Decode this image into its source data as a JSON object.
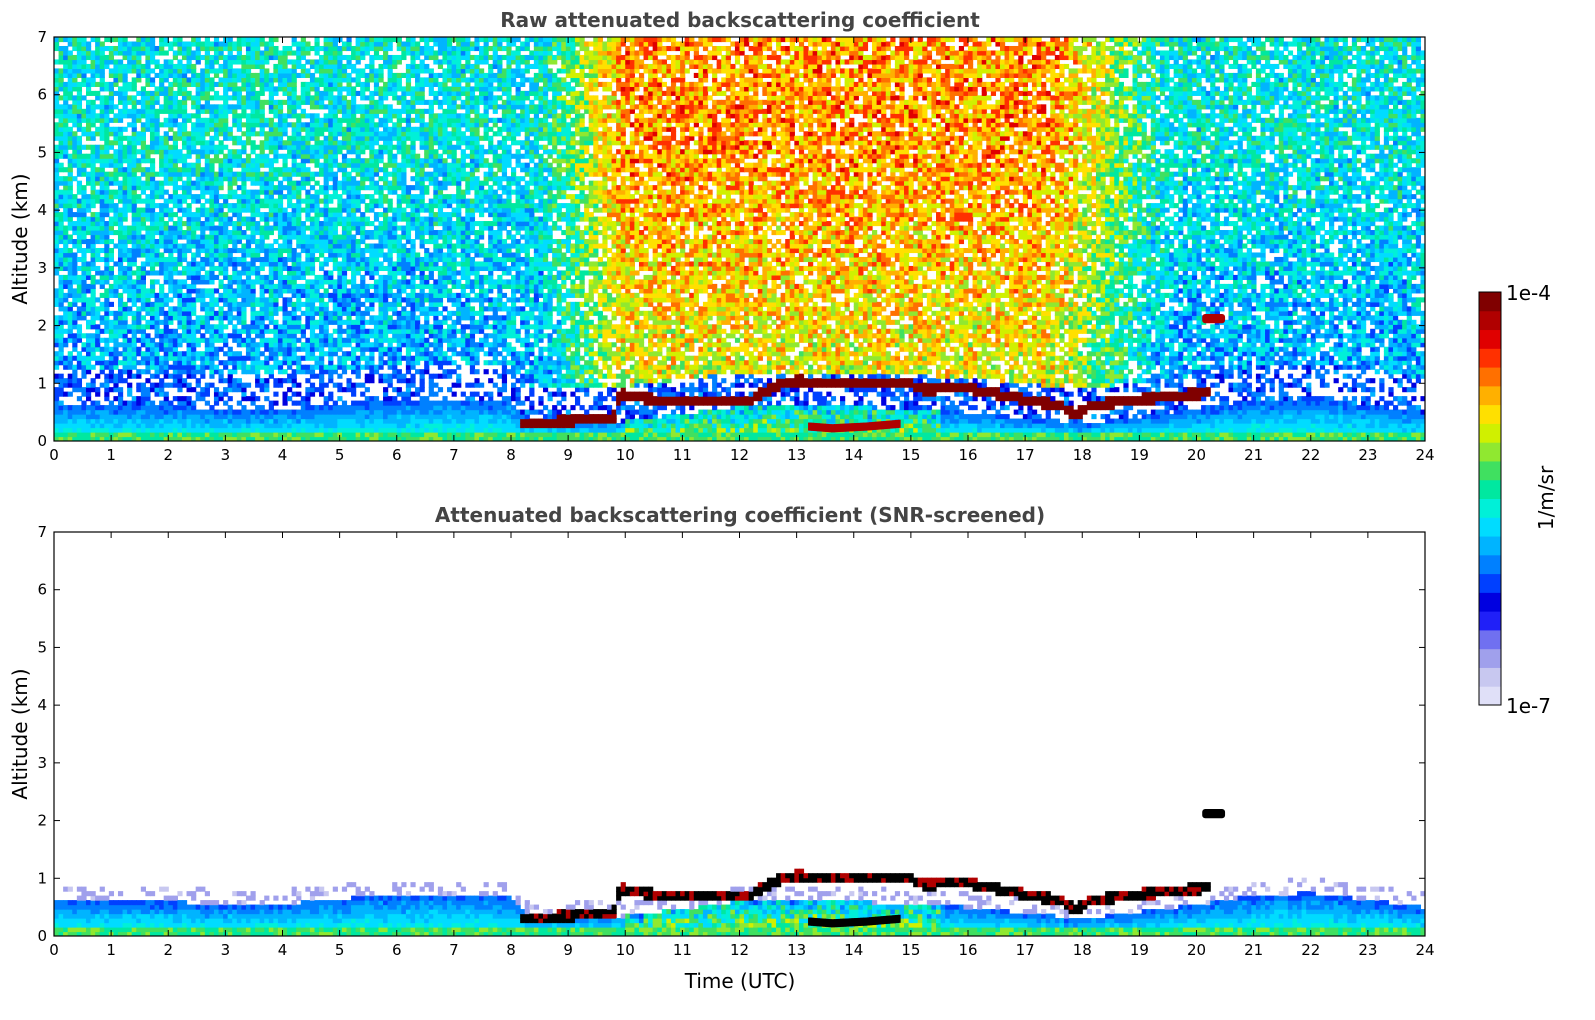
{
  "chart_data": [
    {
      "type": "heatmap",
      "title": "Raw attenuated backscattering coefficient",
      "xlabel": "",
      "ylabel": "Altitude (km)",
      "xlim": [
        0,
        24
      ],
      "ylim": [
        0,
        7
      ],
      "xticks": [
        0,
        1,
        2,
        3,
        4,
        5,
        6,
        7,
        8,
        9,
        10,
        11,
        12,
        13,
        14,
        15,
        16,
        17,
        18,
        19,
        20,
        21,
        22,
        23,
        24
      ],
      "yticks": [
        0,
        1,
        2,
        3,
        4,
        5,
        6,
        7
      ],
      "xtick_labels": [
        "0",
        "1",
        "2",
        "3",
        "4",
        "5",
        "6",
        "7",
        "8",
        "9",
        "10",
        "11",
        "12",
        "13",
        "14",
        "15",
        "16",
        "17",
        "18",
        "19",
        "20",
        "21",
        "22",
        "23",
        "24"
      ],
      "ytick_labels": [
        "0",
        "1",
        "2",
        "3",
        "4",
        "5",
        "6",
        "7"
      ],
      "screened": false
    },
    {
      "type": "heatmap",
      "title": "Attenuated backscattering coefficient (SNR-screened)",
      "xlabel": "Time (UTC)",
      "ylabel": "Altitude (km)",
      "xlim": [
        0,
        24
      ],
      "ylim": [
        0,
        7
      ],
      "xticks": [
        0,
        1,
        2,
        3,
        4,
        5,
        6,
        7,
        8,
        9,
        10,
        11,
        12,
        13,
        14,
        15,
        16,
        17,
        18,
        19,
        20,
        21,
        22,
        23,
        24
      ],
      "yticks": [
        0,
        1,
        2,
        3,
        4,
        5,
        6,
        7
      ],
      "xtick_labels": [
        "0",
        "1",
        "2",
        "3",
        "4",
        "5",
        "6",
        "7",
        "8",
        "9",
        "10",
        "11",
        "12",
        "13",
        "14",
        "15",
        "16",
        "17",
        "18",
        "19",
        "20",
        "21",
        "22",
        "23",
        "24"
      ],
      "ytick_labels": [
        "0",
        "1",
        "2",
        "3",
        "4",
        "5",
        "6",
        "7"
      ],
      "screened": true
    }
  ],
  "colorbar": {
    "label": "1/m/sr",
    "max_label": "1e-4",
    "min_label": "1e-7",
    "scale": "log",
    "range": [
      1e-07,
      0.0001
    ],
    "colormap": [
      "#e0e0f8",
      "#c8c8f0",
      "#a0a0ec",
      "#7070f0",
      "#2020f8",
      "#0000e0",
      "#0040ff",
      "#0080ff",
      "#00b4ff",
      "#00dcff",
      "#00f0d8",
      "#00e8a0",
      "#40e060",
      "#90e830",
      "#d0f000",
      "#ffe000",
      "#ffb000",
      "#ff7000",
      "#ff3000",
      "#e00000",
      "#b00000",
      "#800000"
    ]
  },
  "features": {
    "boundary_layer_top_km": [
      [
        0,
        0.62
      ],
      [
        2,
        0.6
      ],
      [
        3,
        0.55
      ],
      [
        4,
        0.55
      ],
      [
        5,
        0.65
      ],
      [
        6,
        0.7
      ],
      [
        7,
        0.72
      ],
      [
        8,
        0.7
      ],
      [
        8.3,
        0.35
      ],
      [
        10,
        0.35
      ],
      [
        12,
        0.6
      ],
      [
        14,
        0.6
      ],
      [
        16,
        0.5
      ],
      [
        18,
        0.3
      ],
      [
        20,
        0.55
      ],
      [
        21,
        0.7
      ],
      [
        22,
        0.75
      ],
      [
        24,
        0.5
      ]
    ],
    "cloud_layer": [
      [
        8.2,
        0.3
      ],
      [
        8.6,
        0.32
      ],
      [
        9.0,
        0.35
      ],
      [
        9.5,
        0.4
      ],
      [
        9.8,
        0.42
      ],
      [
        9.9,
        0.82
      ],
      [
        10.5,
        0.72
      ],
      [
        11.5,
        0.7
      ],
      [
        12.2,
        0.72
      ],
      [
        12.6,
        0.95
      ],
      [
        13.0,
        1.05
      ],
      [
        13.5,
        1.0
      ],
      [
        14.0,
        1.0
      ],
      [
        14.5,
        1.02
      ],
      [
        15.0,
        1.0
      ],
      [
        15.2,
        0.9
      ],
      [
        16.0,
        0.92
      ],
      [
        17.0,
        0.72
      ],
      [
        17.6,
        0.62
      ],
      [
        17.9,
        0.45
      ],
      [
        18.1,
        0.62
      ],
      [
        19.0,
        0.72
      ],
      [
        20.0,
        0.82
      ],
      [
        20.2,
        0.85
      ]
    ],
    "elevated_cloud": {
      "x": [
        20.1,
        20.5
      ],
      "y": 2.12
    },
    "lower_cloud_segment": [
      [
        13.2,
        0.25
      ],
      [
        13.6,
        0.22
      ],
      [
        14.2,
        0.25
      ],
      [
        14.8,
        0.3
      ]
    ]
  }
}
